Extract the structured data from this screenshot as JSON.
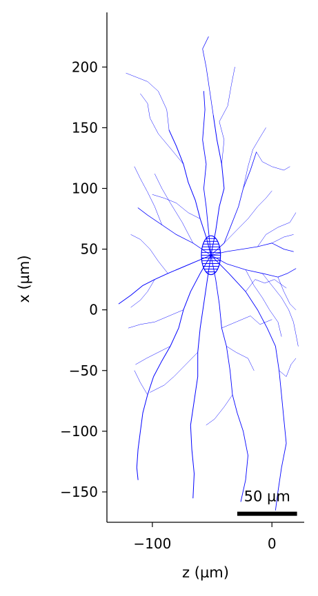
{
  "chart_data": {
    "type": "line",
    "xlabel": "z (µm)",
    "ylabel": "x (µm)",
    "xlim": [
      -138,
      27
    ],
    "ylim": [
      -175,
      245
    ],
    "x_ticks": [
      -100,
      0
    ],
    "x_tick_labels": [
      "−100",
      "0"
    ],
    "y_ticks": [
      200,
      150,
      100,
      50,
      0,
      -50,
      -100,
      -150
    ],
    "y_tick_labels": [
      "200",
      "150",
      "100",
      "50",
      "0",
      "−50",
      "−100",
      "−150"
    ],
    "scale_bar": {
      "label": "50 µm",
      "length": 50,
      "z_start": -29,
      "z_end": 21,
      "x": -168
    },
    "soma": {
      "z": -51,
      "x": 45,
      "radius": 8
    },
    "color": "#0000ff",
    "grid": false,
    "series": [
      {
        "width": 1.0,
        "points": [
          [
            -51,
            45
          ],
          [
            -55,
            60
          ],
          [
            -60,
            75
          ],
          [
            -64,
            90
          ],
          [
            -70,
            105
          ],
          [
            -74,
            120
          ],
          [
            -80,
            135
          ],
          [
            -86,
            148
          ]
        ]
      },
      {
        "width": 0.9,
        "points": [
          [
            -51,
            45
          ],
          [
            -53,
            65
          ],
          [
            -55,
            85
          ],
          [
            -57,
            100
          ],
          [
            -55,
            120
          ],
          [
            -58,
            140
          ],
          [
            -56,
            165
          ],
          [
            -57,
            180
          ]
        ]
      },
      {
        "width": 1.0,
        "points": [
          [
            -51,
            45
          ],
          [
            -47,
            65
          ],
          [
            -44,
            85
          ],
          [
            -40,
            100
          ],
          [
            -42,
            120
          ],
          [
            -46,
            140
          ],
          [
            -49,
            160
          ]
        ]
      },
      {
        "width": 0.7,
        "points": [
          [
            -49,
            160
          ],
          [
            -52,
            180
          ],
          [
            -55,
            200
          ],
          [
            -58,
            215
          ],
          [
            -53,
            225
          ]
        ]
      },
      {
        "width": 0.5,
        "points": [
          [
            -42,
            120
          ],
          [
            -40,
            140
          ],
          [
            -44,
            155
          ],
          [
            -37,
            168
          ],
          [
            -34,
            185
          ],
          [
            -31,
            200
          ]
        ]
      },
      {
        "width": 0.5,
        "points": [
          [
            -86,
            148
          ],
          [
            -88,
            165
          ],
          [
            -95,
            180
          ],
          [
            -104,
            188
          ],
          [
            -122,
            195
          ]
        ]
      },
      {
        "width": 0.5,
        "points": [
          [
            -74,
            120
          ],
          [
            -84,
            132
          ],
          [
            -95,
            145
          ],
          [
            -102,
            158
          ],
          [
            -104,
            170
          ],
          [
            -110,
            178
          ]
        ]
      },
      {
        "width": 0.8,
        "points": [
          [
            -51,
            45
          ],
          [
            -40,
            55
          ],
          [
            -34,
            70
          ],
          [
            -28,
            85
          ],
          [
            -24,
            100
          ],
          [
            -18,
            115
          ],
          [
            -13,
            130
          ]
        ]
      },
      {
        "width": 0.5,
        "points": [
          [
            -24,
            100
          ],
          [
            -20,
            118
          ],
          [
            -16,
            132
          ],
          [
            -10,
            142
          ],
          [
            -5,
            150
          ]
        ]
      },
      {
        "width": 0.5,
        "points": [
          [
            -13,
            130
          ],
          [
            -8,
            122
          ],
          [
            0,
            118
          ],
          [
            10,
            115
          ],
          [
            15,
            118
          ]
        ]
      },
      {
        "width": 0.8,
        "points": [
          [
            -51,
            45
          ],
          [
            -38,
            48
          ],
          [
            -25,
            50
          ],
          [
            -12,
            52
          ],
          [
            0,
            55
          ],
          [
            10,
            50
          ],
          [
            18,
            48
          ]
        ]
      },
      {
        "width": 0.5,
        "points": [
          [
            -12,
            52
          ],
          [
            -5,
            62
          ],
          [
            5,
            68
          ],
          [
            15,
            72
          ],
          [
            20,
            80
          ]
        ]
      },
      {
        "width": 0.5,
        "points": [
          [
            0,
            55
          ],
          [
            10,
            60
          ],
          [
            18,
            62
          ]
        ]
      },
      {
        "width": 0.8,
        "points": [
          [
            -51,
            45
          ],
          [
            -38,
            38
          ],
          [
            -22,
            33
          ],
          [
            -8,
            30
          ],
          [
            5,
            27
          ],
          [
            13,
            30
          ],
          [
            20,
            34
          ]
        ]
      },
      {
        "width": 0.5,
        "points": [
          [
            -8,
            30
          ],
          [
            0,
            20
          ],
          [
            8,
            10
          ],
          [
            14,
            0
          ],
          [
            18,
            -10
          ],
          [
            20,
            -20
          ],
          [
            22,
            -30
          ]
        ]
      },
      {
        "width": 0.5,
        "points": [
          [
            5,
            27
          ],
          [
            10,
            15
          ],
          [
            15,
            5
          ],
          [
            20,
            0
          ]
        ]
      },
      {
        "width": 0.5,
        "points": [
          [
            -22,
            33
          ],
          [
            -15,
            20
          ],
          [
            -8,
            10
          ],
          [
            -2,
            0
          ],
          [
            5,
            -10
          ],
          [
            8,
            -22
          ]
        ]
      },
      {
        "width": 1.0,
        "points": [
          [
            -51,
            45
          ],
          [
            -63,
            40
          ],
          [
            -75,
            35
          ],
          [
            -87,
            30
          ],
          [
            -98,
            25
          ],
          [
            -108,
            20
          ],
          [
            -118,
            12
          ],
          [
            -128,
            5
          ]
        ]
      },
      {
        "width": 0.5,
        "points": [
          [
            -87,
            30
          ],
          [
            -95,
            40
          ],
          [
            -102,
            50
          ],
          [
            -110,
            58
          ],
          [
            -118,
            62
          ]
        ]
      },
      {
        "width": 0.8,
        "points": [
          [
            -51,
            45
          ],
          [
            -66,
            55
          ],
          [
            -80,
            62
          ],
          [
            -92,
            70
          ],
          [
            -104,
            78
          ],
          [
            -112,
            84
          ]
        ]
      },
      {
        "width": 0.5,
        "points": [
          [
            -92,
            70
          ],
          [
            -98,
            85
          ],
          [
            -104,
            97
          ],
          [
            -110,
            108
          ],
          [
            -115,
            118
          ]
        ]
      },
      {
        "width": 0.5,
        "points": [
          [
            -66,
            55
          ],
          [
            -75,
            72
          ],
          [
            -85,
            88
          ],
          [
            -92,
            100
          ],
          [
            -98,
            112
          ]
        ]
      },
      {
        "width": 1.0,
        "points": [
          [
            -51,
            45
          ],
          [
            -60,
            30
          ],
          [
            -68,
            15
          ],
          [
            -74,
            0
          ],
          [
            -78,
            -15
          ],
          [
            -85,
            -30
          ],
          [
            -92,
            -42
          ],
          [
            -99,
            -55
          ],
          [
            -104,
            -70
          ],
          [
            -108,
            -85
          ],
          [
            -110,
            -100
          ],
          [
            -112,
            -115
          ],
          [
            -113,
            -130
          ],
          [
            -112,
            -140
          ]
        ]
      },
      {
        "width": 0.5,
        "points": [
          [
            -85,
            -30
          ],
          [
            -95,
            -35
          ],
          [
            -105,
            -40
          ],
          [
            -114,
            -45
          ]
        ]
      },
      {
        "width": 0.5,
        "points": [
          [
            -74,
            0
          ],
          [
            -86,
            -5
          ],
          [
            -98,
            -10
          ],
          [
            -110,
            -12
          ],
          [
            -120,
            -15
          ]
        ]
      },
      {
        "width": 1.0,
        "points": [
          [
            -51,
            45
          ],
          [
            -54,
            25
          ],
          [
            -57,
            5
          ],
          [
            -60,
            -15
          ],
          [
            -62,
            -35
          ],
          [
            -62,
            -55
          ],
          [
            -65,
            -75
          ],
          [
            -68,
            -95
          ],
          [
            -67,
            -115
          ],
          [
            -65,
            -135
          ],
          [
            -66,
            -155
          ]
        ]
      },
      {
        "width": 0.9,
        "points": [
          [
            -51,
            45
          ],
          [
            -47,
            25
          ],
          [
            -44,
            5
          ],
          [
            -42,
            -15
          ],
          [
            -38,
            -30
          ],
          [
            -35,
            -50
          ],
          [
            -33,
            -70
          ],
          [
            -29,
            -85
          ],
          [
            -24,
            -100
          ],
          [
            -20,
            -120
          ],
          [
            -22,
            -140
          ],
          [
            -26,
            -158
          ]
        ]
      },
      {
        "width": 0.9,
        "points": [
          [
            -51,
            45
          ],
          [
            -36,
            30
          ],
          [
            -22,
            15
          ],
          [
            -12,
            0
          ],
          [
            -4,
            -15
          ],
          [
            3,
            -30
          ],
          [
            6,
            -50
          ],
          [
            8,
            -70
          ],
          [
            10,
            -90
          ],
          [
            12,
            -110
          ],
          [
            8,
            -130
          ],
          [
            5,
            -150
          ],
          [
            3,
            -165
          ]
        ]
      },
      {
        "width": 0.5,
        "points": [
          [
            6,
            -50
          ],
          [
            12,
            -55
          ],
          [
            16,
            -45
          ],
          [
            20,
            -40
          ]
        ]
      },
      {
        "width": 0.5,
        "points": [
          [
            -33,
            -70
          ],
          [
            -40,
            -80
          ],
          [
            -48,
            -90
          ],
          [
            -55,
            -95
          ]
        ]
      },
      {
        "width": 0.5,
        "points": [
          [
            -62,
            -35
          ],
          [
            -72,
            -45
          ],
          [
            -82,
            -55
          ],
          [
            -90,
            -62
          ],
          [
            -102,
            -68
          ]
        ]
      },
      {
        "width": 0.5,
        "points": [
          [
            -42,
            -15
          ],
          [
            -30,
            -10
          ],
          [
            -18,
            -5
          ],
          [
            -10,
            -12
          ],
          [
            0,
            -8
          ]
        ]
      },
      {
        "width": 0.5,
        "points": [
          [
            -38,
            -30
          ],
          [
            -30,
            -35
          ],
          [
            -20,
            -40
          ],
          [
            -15,
            -50
          ]
        ]
      },
      {
        "width": 0.5,
        "points": [
          [
            -22,
            15
          ],
          [
            -14,
            25
          ],
          [
            -6,
            22
          ],
          [
            2,
            25
          ],
          [
            12,
            18
          ]
        ]
      },
      {
        "width": 0.5,
        "points": [
          [
            -40,
            55
          ],
          [
            -30,
            65
          ],
          [
            -20,
            75
          ],
          [
            -12,
            85
          ],
          [
            -5,
            92
          ],
          [
            0,
            98
          ]
        ]
      },
      {
        "width": 0.5,
        "points": [
          [
            -60,
            75
          ],
          [
            -70,
            80
          ],
          [
            -80,
            88
          ],
          [
            -90,
            92
          ],
          [
            -100,
            95
          ]
        ]
      },
      {
        "width": 0.5,
        "points": [
          [
            -98,
            25
          ],
          [
            -104,
            15
          ],
          [
            -110,
            8
          ],
          [
            -118,
            2
          ]
        ]
      },
      {
        "width": 0.5,
        "points": [
          [
            -104,
            -70
          ],
          [
            -110,
            -60
          ],
          [
            -115,
            -50
          ]
        ]
      }
    ]
  }
}
